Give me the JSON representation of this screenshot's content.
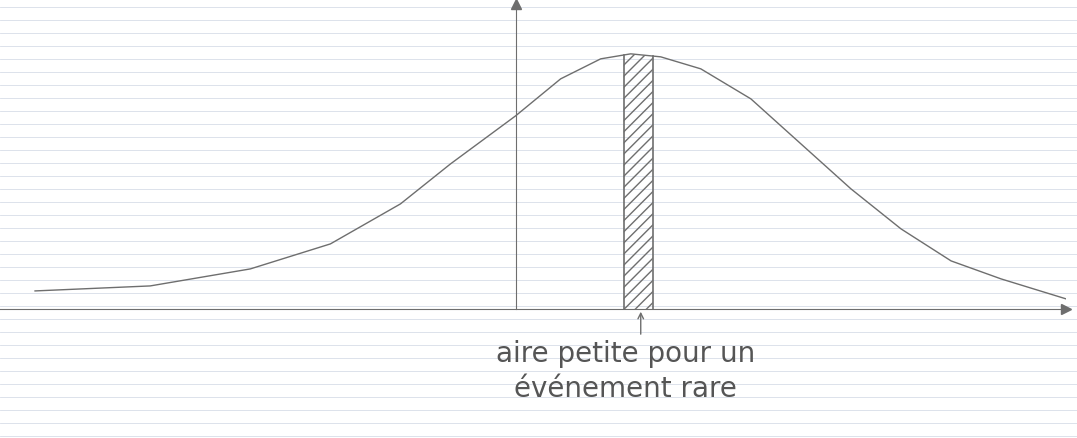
{
  "chart_data": {
    "type": "line",
    "x": [
      -4.8,
      -3.65,
      -2.65,
      -1.85,
      -1.15,
      -0.65,
      0,
      0.45,
      0.85,
      1.15,
      1.45,
      1.85,
      2.35,
      2.85,
      3.35,
      3.85,
      4.35,
      4.85,
      5.5
    ],
    "values": [
      0.18,
      0.23,
      0.4,
      0.65,
      1.05,
      1.45,
      1.93,
      2.3,
      2.5,
      2.55,
      2.52,
      2.4,
      2.1,
      1.65,
      1.2,
      0.8,
      0.48,
      0.3,
      0.1
    ],
    "color": "#6e6e6e",
    "shaded_interval": [
      1.08,
      1.37
    ],
    "annotation": "aire petite pour un\névénement rare",
    "annotation_x": 1.25,
    "xlim": [
      -5.15,
      5.5
    ],
    "ylim": [
      0,
      3.05
    ],
    "xticks": [],
    "yticks": [],
    "tick_labels": false,
    "grid": false
  }
}
